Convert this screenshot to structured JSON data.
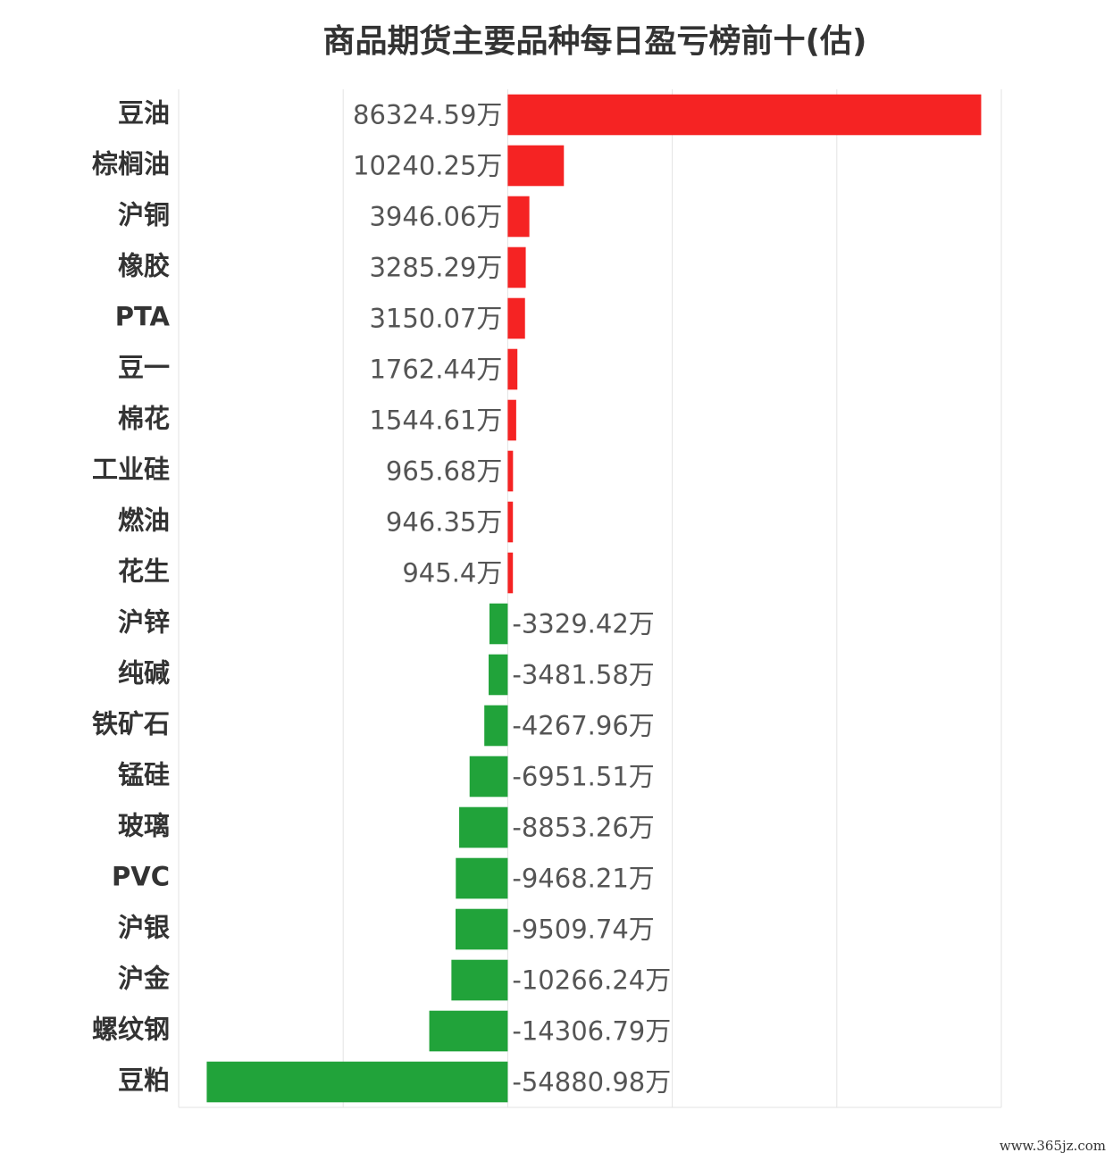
{
  "chart_data": {
    "type": "bar",
    "orientation": "horizontal",
    "title": "商品期货主要品种每日盈亏榜前十(估)",
    "categories": [
      "豆油",
      "棕榈油",
      "沪铜",
      "橡胶",
      "PTA",
      "豆一",
      "棉花",
      "工业硅",
      "燃油",
      "花生",
      "沪锌",
      "纯碱",
      "铁矿石",
      "锰硅",
      "玻璃",
      "PVC",
      "沪银",
      "沪金",
      "螺纹钢",
      "豆粕"
    ],
    "values": [
      86324.59,
      10240.25,
      3946.06,
      3285.29,
      3150.07,
      1762.44,
      1544.61,
      965.68,
      946.35,
      945.4,
      -3329.42,
      -3481.58,
      -4267.96,
      -6951.51,
      -8853.26,
      -9468.21,
      -9509.74,
      -10266.24,
      -14306.79,
      -54880.98
    ],
    "value_labels": [
      "86324.59万",
      "10240.25万",
      "3946.06万",
      "3285.29万",
      "3150.07万",
      "1762.44万",
      "1544.61万",
      "965.68万",
      "946.35万",
      "945.4万",
      "-3329.42万",
      "-3481.58万",
      "-4267.96万",
      "-6951.51万",
      "-8853.26万",
      "-9468.21万",
      "-9509.74万",
      "-10266.24万",
      "-14306.79万",
      "-54880.98万"
    ],
    "positive_color": "#f52323",
    "negative_color": "#21a33a",
    "xlim": [
      -60000,
      90000
    ],
    "xticks": [
      -60000,
      -30000,
      0,
      30000,
      60000,
      90000
    ],
    "grid": true,
    "watermark": "www.365jz.com"
  }
}
